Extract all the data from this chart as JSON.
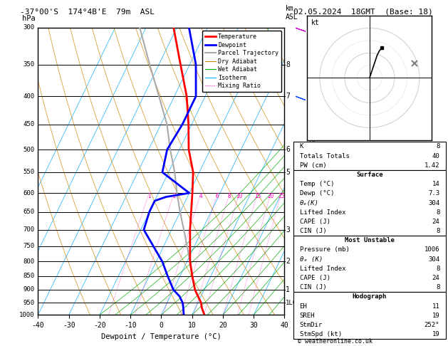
{
  "title_left": "-37°00'S  174°4B'E  79m  ASL",
  "title_right": "02.05.2024  18GMT  (Base: 18)",
  "xlabel": "Dewpoint / Temperature (°C)",
  "xlim": [
    -40,
    40
  ],
  "pressure_levels": [
    300,
    350,
    400,
    450,
    500,
    550,
    600,
    650,
    700,
    750,
    800,
    850,
    900,
    950,
    1000
  ],
  "km_ticks": {
    "350": 8,
    "400": 7,
    "500": 6,
    "550": 5,
    "700": 3,
    "800": 2,
    "900": 1
  },
  "lcl_pressure": 950,
  "temp_profile": {
    "pressure": [
      1000,
      970,
      950,
      925,
      900,
      850,
      800,
      700,
      600,
      550,
      500,
      450,
      400,
      350,
      300
    ],
    "temp": [
      14,
      12,
      11,
      9,
      7,
      4,
      1,
      -4,
      -9,
      -12,
      -17,
      -21,
      -26,
      -33,
      -41
    ]
  },
  "dewp_profile": {
    "pressure": [
      1000,
      970,
      950,
      925,
      900,
      850,
      800,
      700,
      650,
      620,
      610,
      600,
      550,
      500,
      450,
      400,
      350,
      300
    ],
    "temp": [
      7.3,
      6,
      5,
      3,
      0,
      -4,
      -8,
      -19,
      -20,
      -20,
      -17,
      -10,
      -22,
      -24,
      -23,
      -23,
      -28,
      -36
    ]
  },
  "parcel_profile": {
    "pressure": [
      1000,
      970,
      950,
      925,
      900,
      850,
      800,
      700,
      650,
      600,
      550,
      500,
      450,
      400,
      350,
      300
    ],
    "temp": [
      14,
      12,
      11,
      9,
      7,
      4,
      1,
      -6,
      -10,
      -14,
      -18,
      -23,
      -28,
      -35,
      -43,
      -52
    ]
  },
  "temp_color": "#ff0000",
  "dewp_color": "#0000ff",
  "parcel_color": "#aaaaaa",
  "dry_adiabat_color": "#cc8800",
  "wet_adiabat_color": "#00aa00",
  "isotherm_color": "#00aaff",
  "mixing_ratio_color": "#ff00bb",
  "background_color": "#ffffff",
  "skew_factor": 45.0,
  "mixing_ratio_lines": [
    1,
    2,
    4,
    6,
    8,
    10,
    15,
    20,
    25
  ],
  "stats": {
    "K": "8",
    "Totals Totals": "40",
    "PW (cm)": "1.42",
    "surf_temp": "14",
    "surf_dewp": "7.3",
    "surf_thetae": "304",
    "surf_li": "8",
    "surf_cape": "24",
    "surf_cin": "8",
    "mu_press": "1006",
    "mu_thetae": "304",
    "mu_li": "8",
    "mu_cape": "24",
    "mu_cin": "8",
    "hodo_eh": "11",
    "hodo_sreh": "19",
    "hodo_stmdir": "252°",
    "hodo_stmspd": "19"
  },
  "wind_barbs": [
    {
      "p": 300,
      "u": -15,
      "v": 5,
      "color": "#cc00cc"
    },
    {
      "p": 400,
      "u": -8,
      "v": 3,
      "color": "#0044ff"
    },
    {
      "p": 500,
      "u": -5,
      "v": 2,
      "color": "#00aaff"
    },
    {
      "p": 600,
      "u": -3,
      "v": 1,
      "color": "#00aaff"
    },
    {
      "p": 700,
      "u": -3,
      "v": 1,
      "color": "#0044ff"
    },
    {
      "p": 800,
      "u": -2,
      "v": 1,
      "color": "#00aaff"
    },
    {
      "p": 850,
      "u": -2,
      "v": 1,
      "color": "#00aaff"
    },
    {
      "p": 900,
      "u": -2,
      "v": 1,
      "color": "#00aaff"
    },
    {
      "p": 950,
      "u": -2,
      "v": 1,
      "color": "#00aaff"
    },
    {
      "p": 1000,
      "u": -2,
      "v": 1,
      "color": "#00cc44"
    }
  ],
  "copyright": "© weatheronline.co.uk",
  "hodo_u": [
    0,
    1,
    2,
    3,
    4,
    5
  ],
  "hodo_v": [
    0,
    3,
    6,
    9,
    11,
    12
  ],
  "stm_dir": 252,
  "stm_spd": 19
}
